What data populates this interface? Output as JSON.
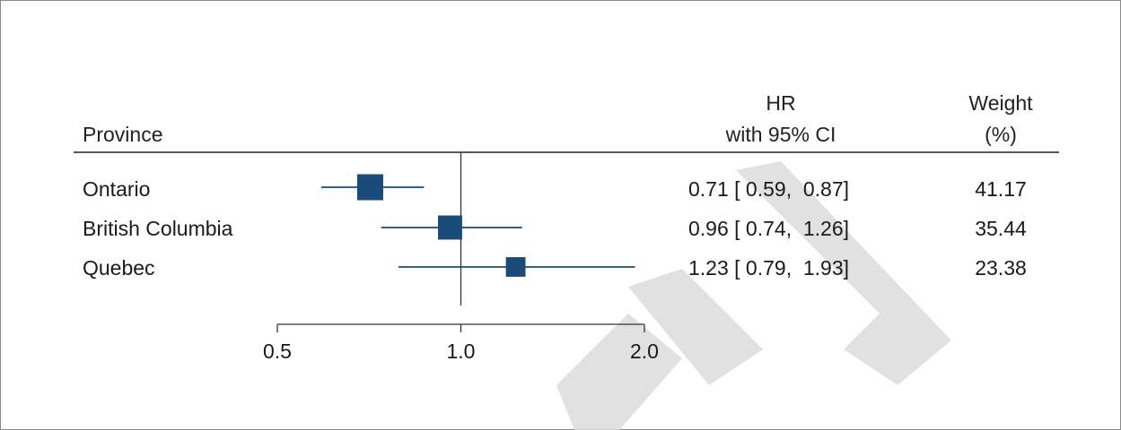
{
  "chart_data": {
    "type": "forest",
    "headers": {
      "label": "Province",
      "estimate_line1": "HR",
      "estimate_line2": "with 95% CI",
      "weight_line1": "Weight",
      "weight_line2": "(%)"
    },
    "x_scale": "log",
    "xlim": [
      0.5,
      2.0
    ],
    "reference_line": 1.0,
    "ticks": [
      {
        "value": 0.5,
        "label": "0.5"
      },
      {
        "value": 1.0,
        "label": "1.0"
      },
      {
        "value": 2.0,
        "label": "2.0"
      }
    ],
    "rows": [
      {
        "label": "Ontario",
        "hr": 0.71,
        "lo": 0.59,
        "hi": 0.87,
        "weight": 41.17,
        "estimate_text": "0.71 [ 0.59,  0.87]",
        "weight_text": "41.17"
      },
      {
        "label": "British Columbia",
        "hr": 0.96,
        "lo": 0.74,
        "hi": 1.26,
        "weight": 35.44,
        "estimate_text": "0.96 [ 0.74,  1.26]",
        "weight_text": "35.44"
      },
      {
        "label": "Quebec",
        "hr": 1.23,
        "lo": 0.79,
        "hi": 1.93,
        "weight": 23.38,
        "estimate_text": "1.23 [ 0.79,  1.93]",
        "weight_text": "23.38"
      }
    ],
    "colors": {
      "marker": "#1a4a78",
      "ci_line": "#1a4a78",
      "axis": "#333333",
      "reference": "#333333",
      "header_rule": "#222222"
    }
  }
}
